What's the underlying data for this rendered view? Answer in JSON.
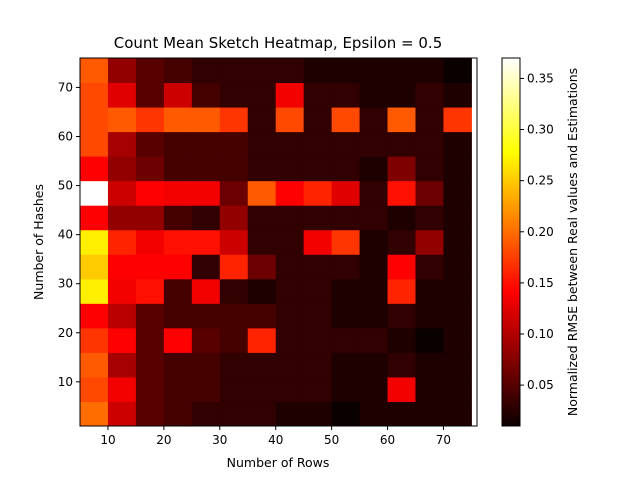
{
  "chart_data": {
    "type": "heatmap",
    "title": "Count Mean Sketch Heatmap, Epsilon = 0.5",
    "xlabel": "Number of Rows",
    "ylabel": "Number of Hashes",
    "colorbar_label": "Normalized RMSE between Real values and Estimations",
    "colormap": "hot",
    "x_start": 5,
    "x_step": 5,
    "x_count": 14,
    "y_start": 1,
    "y_step": 5,
    "y_count": 15,
    "xlim": [
      5,
      76
    ],
    "ylim": [
      1,
      76
    ],
    "x_ticks": [
      10,
      20,
      30,
      40,
      50,
      60,
      70
    ],
    "y_ticks": [
      10,
      20,
      30,
      40,
      50,
      60,
      70
    ],
    "color_range": [
      0.01,
      0.37
    ],
    "colorbar_ticks": [
      0.05,
      0.1,
      0.15,
      0.2,
      0.25,
      0.3,
      0.35
    ],
    "values": [
      [
        0.2,
        0.11,
        0.05,
        0.04,
        0.03,
        0.03,
        0.03,
        0.02,
        0.02,
        0.01,
        0.02,
        0.02,
        0.02,
        0.02
      ],
      [
        0.18,
        0.13,
        0.05,
        0.04,
        0.04,
        0.03,
        0.03,
        0.03,
        0.03,
        0.02,
        0.02,
        0.13,
        0.02,
        0.02
      ],
      [
        0.19,
        0.09,
        0.05,
        0.04,
        0.04,
        0.03,
        0.03,
        0.03,
        0.03,
        0.02,
        0.02,
        0.03,
        0.02,
        0.02
      ],
      [
        0.17,
        0.14,
        0.05,
        0.14,
        0.05,
        0.04,
        0.16,
        0.03,
        0.03,
        0.03,
        0.03,
        0.02,
        0.01,
        0.02
      ],
      [
        0.14,
        0.1,
        0.05,
        0.04,
        0.04,
        0.04,
        0.04,
        0.03,
        0.03,
        0.02,
        0.02,
        0.03,
        0.02,
        0.02
      ],
      [
        0.27,
        0.13,
        0.15,
        0.04,
        0.13,
        0.03,
        0.02,
        0.03,
        0.03,
        0.02,
        0.02,
        0.16,
        0.02,
        0.02
      ],
      [
        0.25,
        0.14,
        0.14,
        0.14,
        0.03,
        0.16,
        0.06,
        0.03,
        0.03,
        0.03,
        0.02,
        0.14,
        0.03,
        0.02
      ],
      [
        0.27,
        0.16,
        0.13,
        0.15,
        0.15,
        0.11,
        0.03,
        0.03,
        0.13,
        0.17,
        0.02,
        0.03,
        0.08,
        0.02
      ],
      [
        0.14,
        0.08,
        0.08,
        0.04,
        0.03,
        0.08,
        0.03,
        0.03,
        0.03,
        0.03,
        0.03,
        0.02,
        0.03,
        0.02
      ],
      [
        0.37,
        0.11,
        0.14,
        0.13,
        0.13,
        0.06,
        0.19,
        0.14,
        0.16,
        0.12,
        0.03,
        0.15,
        0.06,
        0.02
      ],
      [
        0.14,
        0.08,
        0.06,
        0.04,
        0.04,
        0.04,
        0.03,
        0.03,
        0.03,
        0.03,
        0.02,
        0.07,
        0.03,
        0.02
      ],
      [
        0.18,
        0.09,
        0.05,
        0.04,
        0.04,
        0.04,
        0.03,
        0.03,
        0.03,
        0.03,
        0.03,
        0.03,
        0.03,
        0.02
      ],
      [
        0.18,
        0.19,
        0.17,
        0.19,
        0.19,
        0.17,
        0.03,
        0.18,
        0.03,
        0.18,
        0.03,
        0.19,
        0.03,
        0.17
      ],
      [
        0.18,
        0.12,
        0.05,
        0.11,
        0.04,
        0.03,
        0.03,
        0.13,
        0.03,
        0.03,
        0.02,
        0.02,
        0.03,
        0.02
      ],
      [
        0.19,
        0.08,
        0.05,
        0.04,
        0.03,
        0.03,
        0.03,
        0.03,
        0.02,
        0.02,
        0.02,
        0.02,
        0.02,
        0.01
      ]
    ]
  }
}
